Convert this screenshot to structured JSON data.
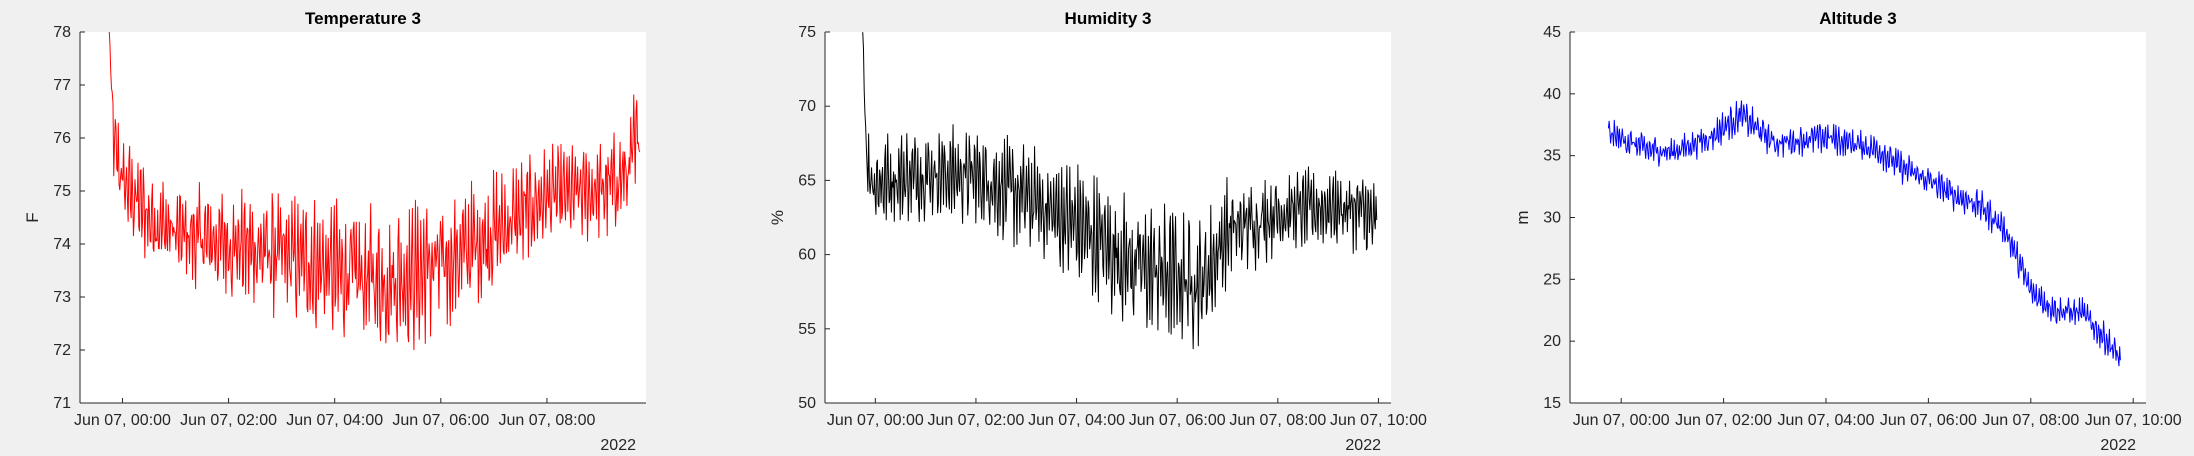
{
  "figure": {
    "background": "#f0f0f0",
    "axes_background": "#ffffff"
  },
  "chart_data": [
    {
      "type": "line",
      "title": "Temperature 3",
      "xlabel": "",
      "ylabel": "F",
      "ylim": [
        71,
        78
      ],
      "yticks": [
        "71",
        "72",
        "73",
        "74",
        "75",
        "76",
        "77",
        "78"
      ],
      "xlim": [
        "2022-06-06 23:12",
        "2022-06-07 09:52"
      ],
      "xticks": [
        "Jun 07, 00:00",
        "Jun 07, 02:00",
        "Jun 07, 04:00",
        "Jun 07, 06:00",
        "Jun 07, 08:00"
      ],
      "xtick_times": [
        "2022-06-07 00:00",
        "2022-06-07 02:00",
        "2022-06-07 04:00",
        "2022-06-07 06:00",
        "2022-06-07 08:00"
      ],
      "x_secondary_label": "2022",
      "grid": false,
      "series": [
        {
          "color": "#ff0000",
          "x": [
            "2022-06-06 23:45",
            "2022-06-06 23:50",
            "2022-06-07 00:00",
            "2022-06-07 00:30",
            "2022-06-07 01:00",
            "2022-06-07 02:00",
            "2022-06-07 03:00",
            "2022-06-07 04:00",
            "2022-06-07 05:00",
            "2022-06-07 06:00",
            "2022-06-07 07:00",
            "2022-06-07 08:00",
            "2022-06-07 09:00",
            "2022-06-07 09:30",
            "2022-06-07 09:45"
          ],
          "y": [
            78.0,
            75.9,
            75.2,
            74.5,
            74.2,
            74.0,
            73.8,
            73.5,
            73.3,
            73.6,
            74.2,
            74.9,
            75.0,
            75.3,
            76.0
          ],
          "band": [
            0.3,
            0.9,
            1.0,
            1.0,
            1.0,
            1.2,
            1.3,
            1.5,
            1.6,
            1.5,
            1.3,
            1.0,
            1.0,
            1.2,
            1.4
          ]
        }
      ]
    },
    {
      "type": "line",
      "title": "Humidity 3",
      "xlabel": "",
      "ylabel": "%",
      "ylim": [
        50,
        75
      ],
      "yticks": [
        "50",
        "55",
        "60",
        "65",
        "70",
        "75"
      ],
      "xlim": [
        "2022-06-06 23:00",
        "2022-06-07 10:15"
      ],
      "xticks": [
        "Jun 07, 00:00",
        "Jun 07, 02:00",
        "Jun 07, 04:00",
        "Jun 07, 06:00",
        "Jun 07, 08:00",
        "Jun 07, 10:00"
      ],
      "xtick_times": [
        "2022-06-07 00:00",
        "2022-06-07 02:00",
        "2022-06-07 04:00",
        "2022-06-07 06:00",
        "2022-06-07 08:00",
        "2022-06-07 10:00"
      ],
      "x_secondary_label": "2022",
      "grid": false,
      "series": [
        {
          "color": "#000000",
          "x": [
            "2022-06-06 23:45",
            "2022-06-06 23:50",
            "2022-06-07 00:00",
            "2022-06-07 01:00",
            "2022-06-07 02:00",
            "2022-06-07 03:00",
            "2022-06-07 04:00",
            "2022-06-07 05:00",
            "2022-06-07 06:00",
            "2022-06-07 06:30",
            "2022-06-07 07:00",
            "2022-06-07 08:00",
            "2022-06-07 09:00",
            "2022-06-07 09:40",
            "2022-06-07 09:58"
          ],
          "y": [
            75.0,
            66.0,
            64.8,
            65.5,
            65.3,
            63.8,
            62.0,
            59.5,
            58.5,
            58.0,
            61.5,
            62.8,
            63.2,
            63.0,
            62.0
          ],
          "band": [
            0.5,
            3.0,
            3.5,
            3.5,
            3.5,
            4.0,
            4.5,
            5.0,
            5.0,
            4.8,
            4.0,
            3.0,
            3.0,
            3.0,
            3.0
          ]
        }
      ]
    },
    {
      "type": "line",
      "title": "Altitude 3",
      "xlabel": "",
      "ylabel": "m",
      "ylim": [
        15,
        45
      ],
      "yticks": [
        "15",
        "20",
        "25",
        "30",
        "35",
        "40",
        "45"
      ],
      "xlim": [
        "2022-06-06 23:00",
        "2022-06-07 10:15"
      ],
      "xticks": [
        "Jun 07, 00:00",
        "Jun 07, 02:00",
        "Jun 07, 04:00",
        "Jun 07, 06:00",
        "Jun 07, 08:00",
        "Jun 07, 10:00"
      ],
      "xtick_times": [
        "2022-06-07 00:00",
        "2022-06-07 02:00",
        "2022-06-07 04:00",
        "2022-06-07 06:00",
        "2022-06-07 08:00",
        "2022-06-07 10:00"
      ],
      "x_secondary_label": "2022",
      "grid": false,
      "series": [
        {
          "color": "#0000ff",
          "x": [
            "2022-06-06 23:45",
            "2022-06-07 00:30",
            "2022-06-07 01:00",
            "2022-06-07 01:45",
            "2022-06-07 02:20",
            "2022-06-07 03:00",
            "2022-06-07 04:00",
            "2022-06-07 05:00",
            "2022-06-07 05:30",
            "2022-06-07 06:00",
            "2022-06-07 06:30",
            "2022-06-07 07:00",
            "2022-06-07 07:30",
            "2022-06-07 08:00",
            "2022-06-07 08:30",
            "2022-06-07 09:00",
            "2022-06-07 09:30",
            "2022-06-07 09:45"
          ],
          "y": [
            36.8,
            35.5,
            35.3,
            36.5,
            38.3,
            36.0,
            36.5,
            35.5,
            34.0,
            33.0,
            31.8,
            31.0,
            29.0,
            24.0,
            22.5,
            22.3,
            20.0,
            18.5
          ],
          "band": [
            1.4,
            1.4,
            1.4,
            1.4,
            1.6,
            1.4,
            1.4,
            1.4,
            1.4,
            1.4,
            1.4,
            1.4,
            1.4,
            1.6,
            1.4,
            1.4,
            1.4,
            1.4
          ]
        }
      ]
    }
  ]
}
